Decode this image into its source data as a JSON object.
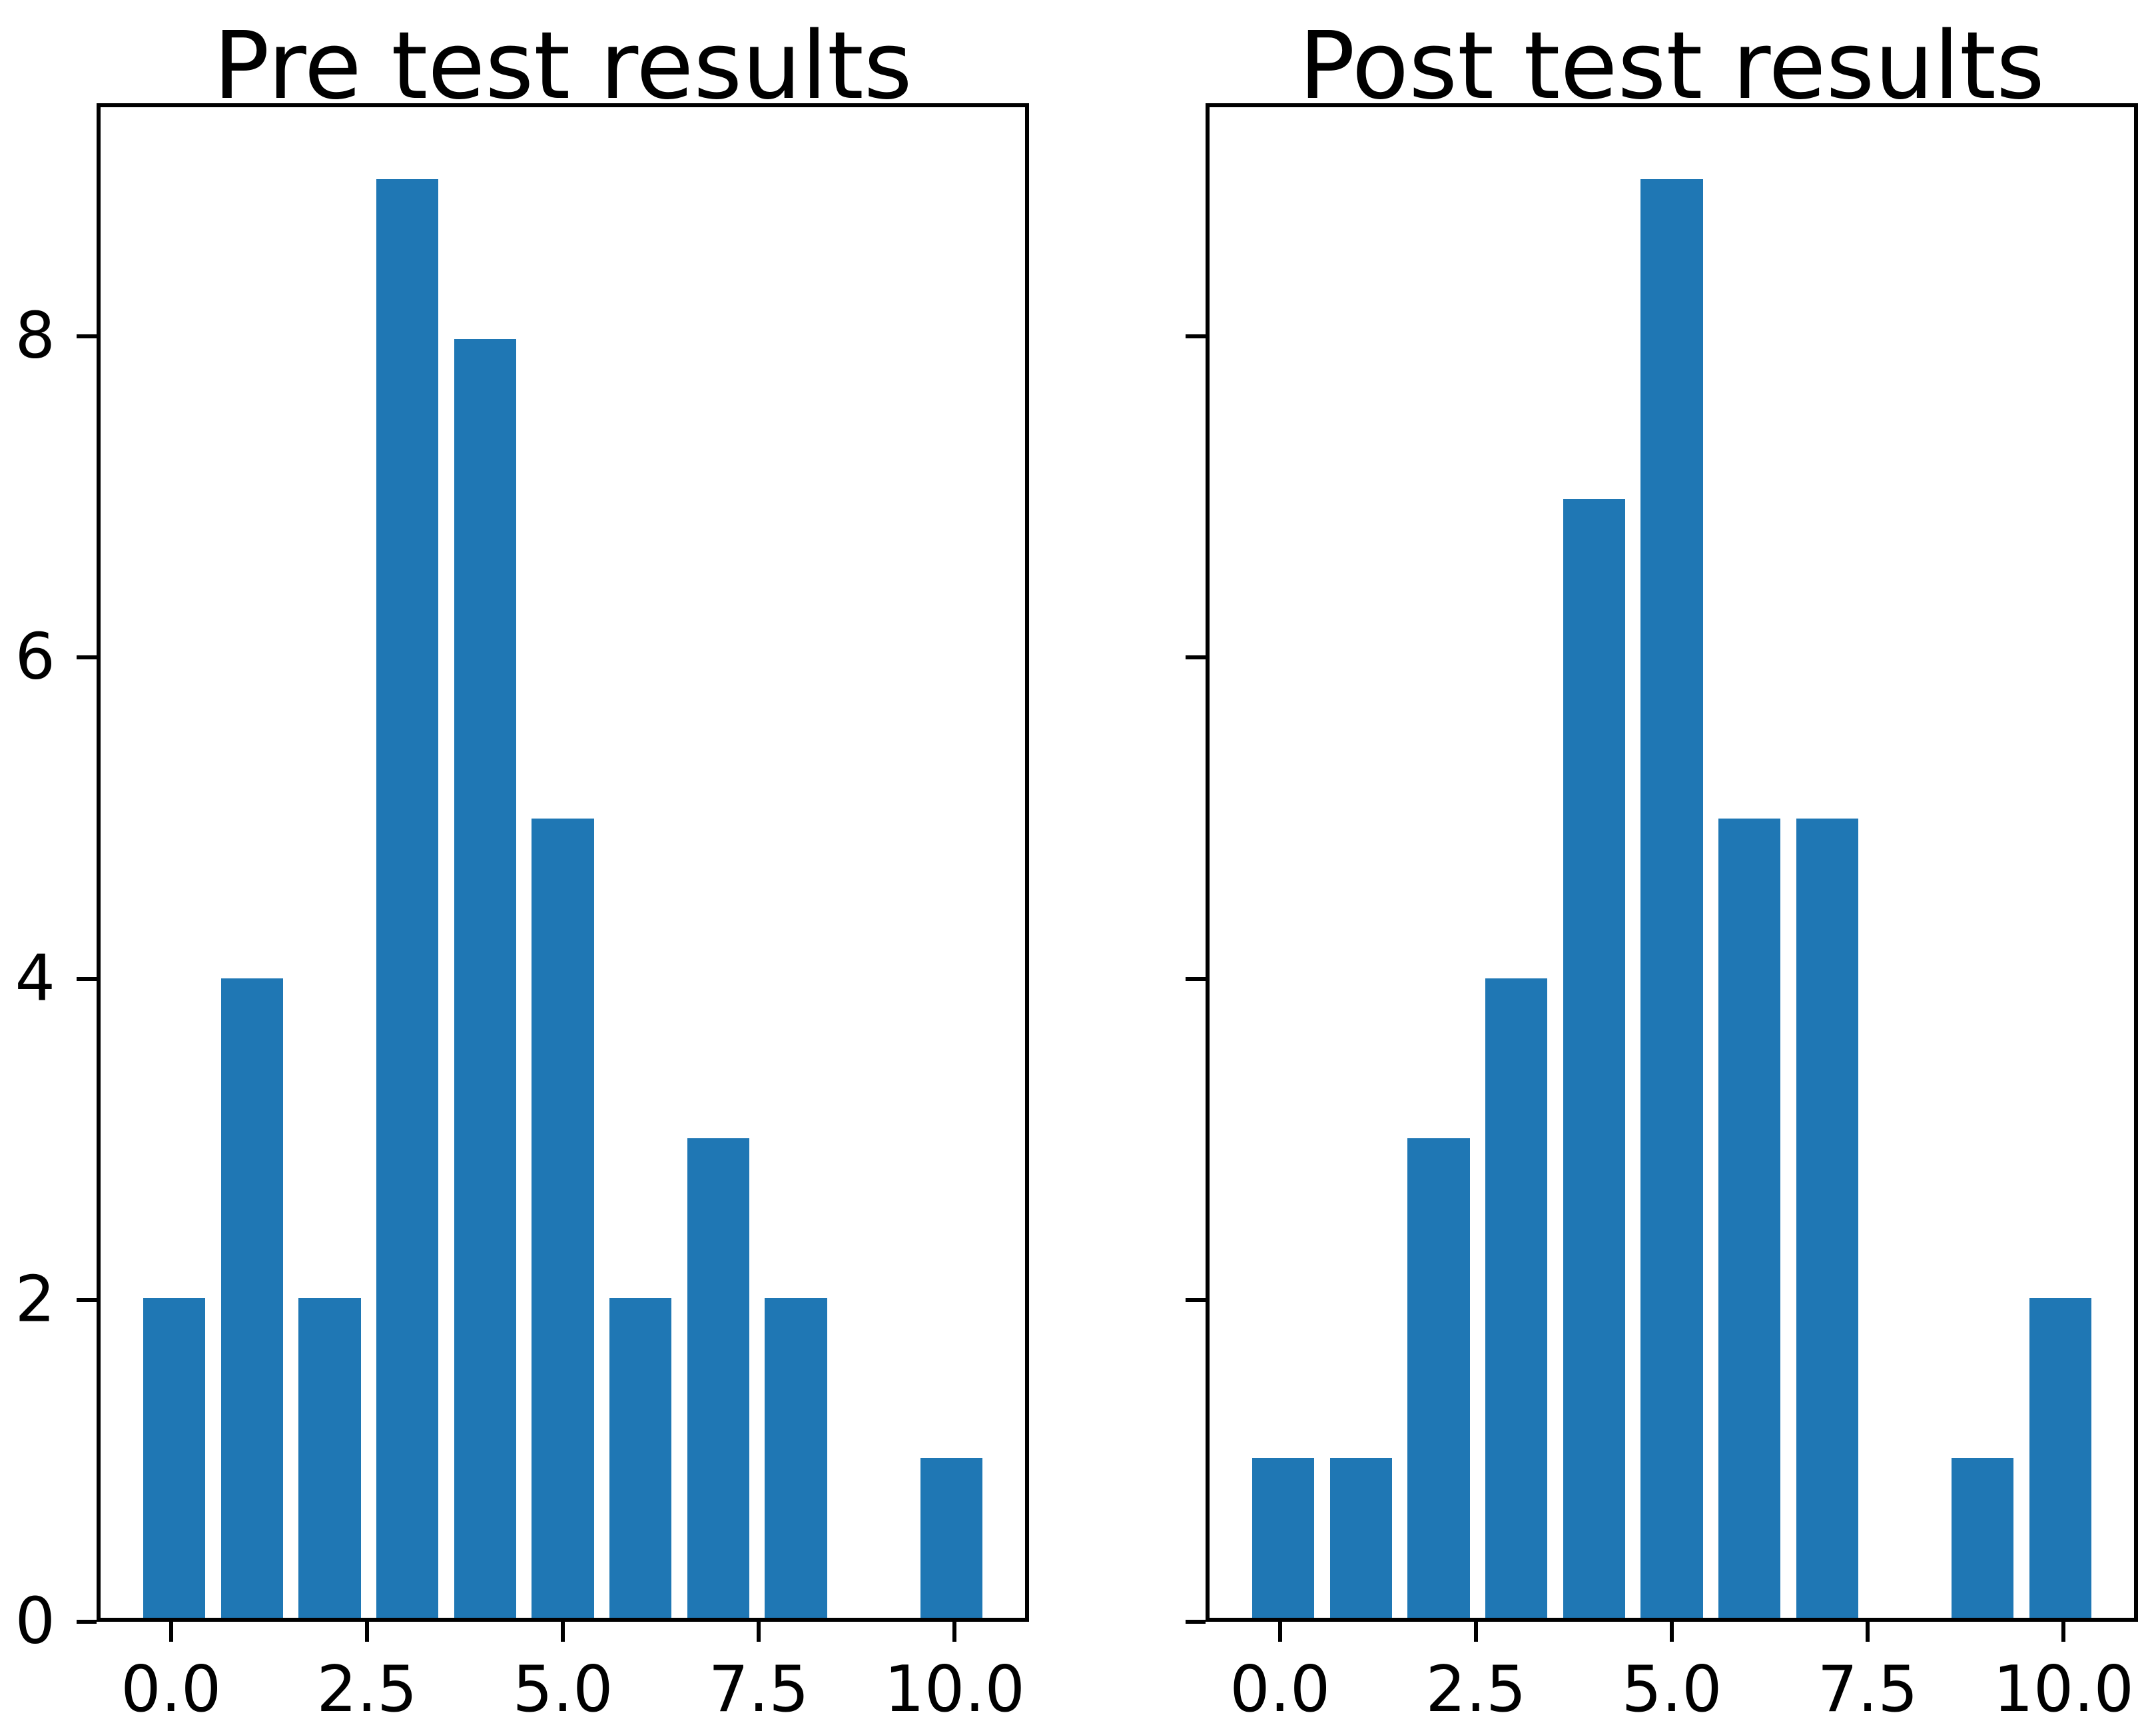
{
  "figure": {
    "background": "#ffffff",
    "spine_color": "#000000",
    "tick_color": "#000000",
    "text_color": "#000000",
    "accent_bar_color": "#1f77b4"
  },
  "chart_data": [
    {
      "type": "bar",
      "title": "Pre test results",
      "x": [
        0,
        1,
        2,
        3,
        4,
        5,
        6,
        7,
        8,
        9,
        10
      ],
      "values": [
        2,
        4,
        2,
        9,
        8,
        5,
        2,
        3,
        2,
        0,
        1
      ],
      "bar_width": 0.8,
      "bar_color": "#1f77b4",
      "xlim": [
        -0.95,
        10.95
      ],
      "ylim": [
        0,
        9.45
      ],
      "xticks": [
        0,
        2.5,
        5,
        7.5,
        10
      ],
      "xtick_labels": [
        "0.0",
        "2.5",
        "5.0",
        "7.5",
        "10.0"
      ],
      "yticks": [
        0,
        2,
        4,
        6,
        8
      ],
      "ytick_labels": [
        "0",
        "2",
        "4",
        "6",
        "8"
      ],
      "show_ytick_labels": true,
      "xlabel": "",
      "ylabel": "",
      "grid": false,
      "legend_position": "none"
    },
    {
      "type": "bar",
      "title": "Post test results",
      "x": [
        0,
        1,
        2,
        3,
        4,
        5,
        6,
        7,
        8,
        9,
        10
      ],
      "values": [
        1,
        1,
        3,
        4,
        7,
        9,
        5,
        5,
        0,
        1,
        2
      ],
      "bar_width": 0.8,
      "bar_color": "#1f77b4",
      "xlim": [
        -0.95,
        10.95
      ],
      "ylim": [
        0,
        9.45
      ],
      "xticks": [
        0,
        2.5,
        5,
        7.5,
        10
      ],
      "xtick_labels": [
        "0.0",
        "2.5",
        "5.0",
        "7.5",
        "10.0"
      ],
      "yticks": [
        0,
        2,
        4,
        6,
        8
      ],
      "ytick_labels": [
        "0",
        "2",
        "4",
        "6",
        "8"
      ],
      "show_ytick_labels": false,
      "xlabel": "",
      "ylabel": "",
      "grid": false,
      "legend_position": "none"
    }
  ]
}
